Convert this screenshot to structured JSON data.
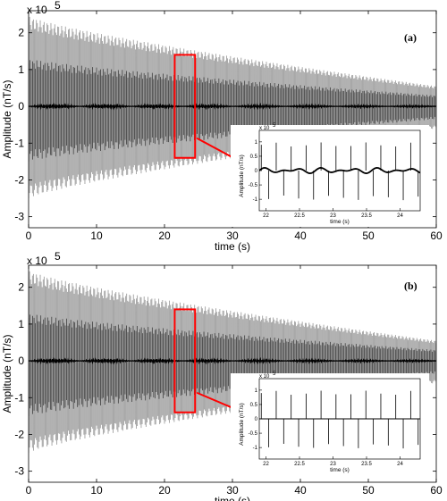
{
  "chart_data": [
    {
      "type": "line",
      "panel_label": "(a)",
      "xlabel": "time (s)",
      "ylabel": "Amplitude (nT/s)",
      "y_multiplier": "x 10",
      "y_exponent": "5",
      "xlim": [
        0,
        60
      ],
      "ylim": [
        -3.3,
        2.6
      ],
      "x_ticks": [
        "0",
        "10",
        "20",
        "30",
        "40",
        "50",
        "60"
      ],
      "y_ticks": [
        "2",
        "1",
        "0",
        "-1",
        "-2",
        "-3"
      ],
      "grid": false,
      "series": [
        {
          "color": "#a0a0a0",
          "envelope_start": 2.45,
          "envelope_end": 0.55,
          "neg_start": -2.5,
          "neg_end": -0.6
        },
        {
          "color": "#404040",
          "envelope_start": 1.3,
          "envelope_end": 0.3,
          "neg_start": -1.5,
          "neg_end": -0.35
        },
        {
          "color": "#000000",
          "amplitude": 0.06
        }
      ],
      "highlight": {
        "x_range": [
          21.5,
          24.5
        ],
        "y_range": [
          -1.4,
          1.4
        ],
        "color": "#ff0000"
      },
      "inset": {
        "xlabel": "time (s)",
        "ylabel": "Amplitude (nT/s)",
        "y_multiplier": "x 10",
        "y_exponent": "5",
        "xlim": [
          21.9,
          24.3
        ],
        "x_ticks": [
          "22",
          "22.5",
          "23",
          "23.5",
          "24"
        ],
        "ylim": [
          -1.4,
          1.4
        ],
        "y_ticks": [
          "1",
          "0.5",
          "0",
          "-0.5",
          "-1"
        ],
        "line": "thick_wavy"
      }
    },
    {
      "type": "line",
      "panel_label": "(b)",
      "xlabel": "time (s)",
      "ylabel": "Amplitude (nT/s)",
      "y_multiplier": "x 10",
      "y_exponent": "5",
      "xlim": [
        0,
        60
      ],
      "ylim": [
        -3.3,
        2.6
      ],
      "x_ticks": [
        "0",
        "10",
        "20",
        "30",
        "40",
        "50",
        "60"
      ],
      "y_ticks": [
        "2",
        "1",
        "0",
        "-1",
        "-2",
        "-3"
      ],
      "grid": false,
      "series": [
        {
          "color": "#a0a0a0",
          "envelope_start": 2.45,
          "envelope_end": 0.55,
          "neg_start": -2.5,
          "neg_end": -0.6
        },
        {
          "color": "#404040",
          "envelope_start": 1.3,
          "envelope_end": 0.3,
          "neg_start": -1.5,
          "neg_end": -0.35
        },
        {
          "color": "#000000",
          "amplitude": 0.06
        }
      ],
      "highlight": {
        "x_range": [
          21.5,
          24.5
        ],
        "y_range": [
          -1.4,
          1.4
        ],
        "color": "#ff0000"
      },
      "inset": {
        "xlabel": "time (s)",
        "ylabel": "Amplitude (nT/s)",
        "y_multiplier": "x 10",
        "y_exponent": "5",
        "xlim": [
          21.9,
          24.3
        ],
        "x_ticks": [
          "22",
          "22.5",
          "23",
          "23.5",
          "24"
        ],
        "ylim": [
          -1.4,
          1.4
        ],
        "y_ticks": [
          "1",
          "0.5",
          "0",
          "-0.5",
          "-1"
        ],
        "line": "flat"
      }
    }
  ]
}
